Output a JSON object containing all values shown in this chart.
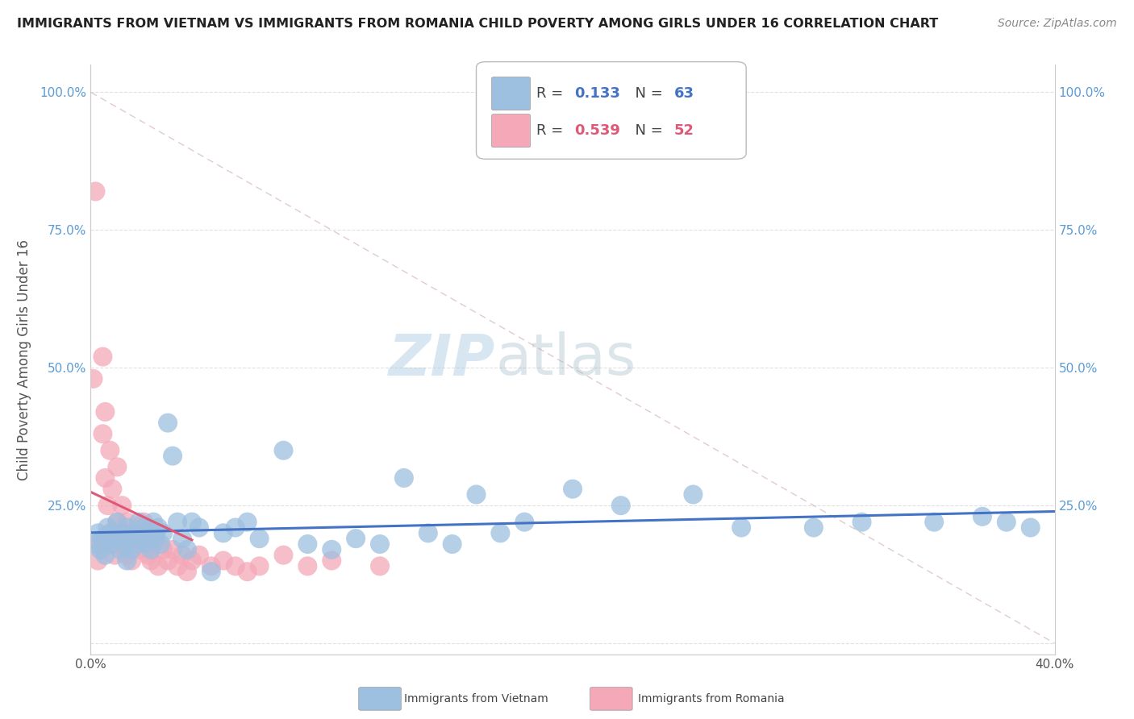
{
  "title": "IMMIGRANTS FROM VIETNAM VS IMMIGRANTS FROM ROMANIA CHILD POVERTY AMONG GIRLS UNDER 16 CORRELATION CHART",
  "source": "Source: ZipAtlas.com",
  "ylabel": "Child Poverty Among Girls Under 16",
  "xlim": [
    0.0,
    0.4
  ],
  "ylim": [
    -0.02,
    1.05
  ],
  "watermark_zip": "ZIP",
  "watermark_atlas": "atlas",
  "R_vietnam": 0.133,
  "N_vietnam": 63,
  "R_romania": 0.539,
  "N_romania": 52,
  "color_vietnam": "#9dbfe0",
  "color_romania": "#f4a8b8",
  "line_color_vietnam": "#4472c4",
  "line_color_romania": "#e05878",
  "diag_color": "#ddbbbb",
  "background_color": "#ffffff",
  "grid_color": "#e0e0e0",
  "title_color": "#222222",
  "vietnam_x": [
    0.002,
    0.003,
    0.004,
    0.005,
    0.006,
    0.007,
    0.008,
    0.009,
    0.01,
    0.011,
    0.012,
    0.013,
    0.014,
    0.015,
    0.015,
    0.016,
    0.017,
    0.018,
    0.019,
    0.02,
    0.021,
    0.022,
    0.023,
    0.024,
    0.025,
    0.026,
    0.027,
    0.028,
    0.029,
    0.03,
    0.032,
    0.034,
    0.036,
    0.038,
    0.04,
    0.042,
    0.045,
    0.05,
    0.055,
    0.06,
    0.065,
    0.07,
    0.08,
    0.09,
    0.1,
    0.11,
    0.12,
    0.13,
    0.14,
    0.15,
    0.16,
    0.17,
    0.18,
    0.2,
    0.22,
    0.25,
    0.27,
    0.3,
    0.32,
    0.35,
    0.37,
    0.38,
    0.39
  ],
  "vietnam_y": [
    0.18,
    0.2,
    0.17,
    0.19,
    0.16,
    0.21,
    0.18,
    0.2,
    0.19,
    0.22,
    0.17,
    0.2,
    0.18,
    0.21,
    0.15,
    0.19,
    0.17,
    0.2,
    0.18,
    0.22,
    0.19,
    0.21,
    0.18,
    0.2,
    0.17,
    0.22,
    0.19,
    0.21,
    0.18,
    0.2,
    0.4,
    0.34,
    0.22,
    0.19,
    0.17,
    0.22,
    0.21,
    0.13,
    0.2,
    0.21,
    0.22,
    0.19,
    0.35,
    0.18,
    0.17,
    0.19,
    0.18,
    0.3,
    0.2,
    0.18,
    0.27,
    0.2,
    0.22,
    0.28,
    0.25,
    0.27,
    0.21,
    0.21,
    0.22,
    0.22,
    0.23,
    0.22,
    0.21
  ],
  "romania_x": [
    0.001,
    0.002,
    0.003,
    0.004,
    0.005,
    0.005,
    0.006,
    0.006,
    0.007,
    0.008,
    0.008,
    0.009,
    0.009,
    0.01,
    0.011,
    0.011,
    0.012,
    0.013,
    0.013,
    0.014,
    0.015,
    0.015,
    0.016,
    0.017,
    0.018,
    0.019,
    0.02,
    0.021,
    0.022,
    0.023,
    0.024,
    0.025,
    0.026,
    0.027,
    0.028,
    0.03,
    0.032,
    0.034,
    0.036,
    0.038,
    0.04,
    0.042,
    0.045,
    0.05,
    0.055,
    0.06,
    0.065,
    0.07,
    0.08,
    0.09,
    0.1,
    0.12
  ],
  "romania_y": [
    0.48,
    0.82,
    0.15,
    0.18,
    0.52,
    0.38,
    0.42,
    0.3,
    0.25,
    0.2,
    0.35,
    0.18,
    0.28,
    0.16,
    0.22,
    0.32,
    0.2,
    0.18,
    0.25,
    0.19,
    0.22,
    0.16,
    0.2,
    0.15,
    0.18,
    0.2,
    0.17,
    0.19,
    0.22,
    0.18,
    0.16,
    0.15,
    0.18,
    0.2,
    0.14,
    0.17,
    0.15,
    0.17,
    0.14,
    0.16,
    0.13,
    0.15,
    0.16,
    0.14,
    0.15,
    0.14,
    0.13,
    0.14,
    0.16,
    0.14,
    0.15,
    0.14
  ],
  "title_fontsize": 11.5,
  "source_fontsize": 10,
  "axis_label_fontsize": 12,
  "tick_fontsize": 11,
  "legend_fontsize": 13,
  "watermark_fontsize_zip": 52,
  "watermark_fontsize_atlas": 52,
  "scatter_size": 300
}
